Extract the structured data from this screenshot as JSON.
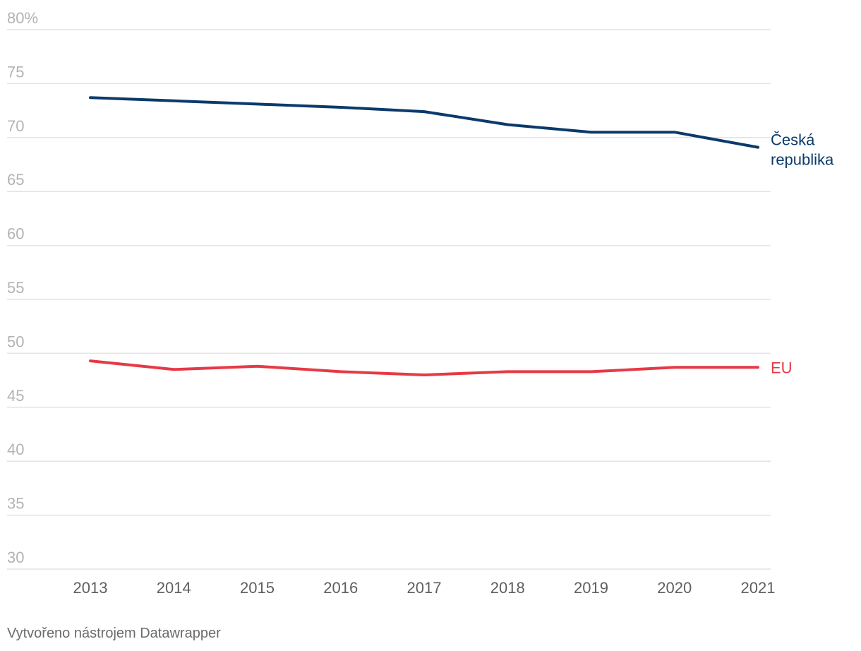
{
  "chart_data": {
    "type": "line",
    "x": [
      "2013",
      "2014",
      "2015",
      "2016",
      "2017",
      "2018",
      "2019",
      "2020",
      "2021"
    ],
    "ylim": [
      30,
      80
    ],
    "yticks": [
      30,
      35,
      40,
      45,
      50,
      55,
      60,
      65,
      70,
      75,
      80
    ],
    "ytick_labels": [
      "30",
      "35",
      "40",
      "45",
      "50",
      "55",
      "60",
      "65",
      "70",
      "75",
      "80%"
    ],
    "grid": true,
    "series": [
      {
        "name": "Česká republika",
        "label_lines": [
          "Česká",
          "republika"
        ],
        "color": "#0b3a6b",
        "values": [
          73.7,
          73.4,
          73.1,
          72.8,
          72.4,
          71.2,
          70.5,
          70.5,
          69.1
        ]
      },
      {
        "name": "EU",
        "label_lines": [
          "EU"
        ],
        "color": "#e63946",
        "values": [
          49.3,
          48.5,
          48.8,
          48.3,
          48.0,
          48.3,
          48.3,
          48.7,
          48.7
        ]
      }
    ]
  },
  "footer": {
    "credit": "Vytvořeno nástrojem Datawrapper"
  }
}
